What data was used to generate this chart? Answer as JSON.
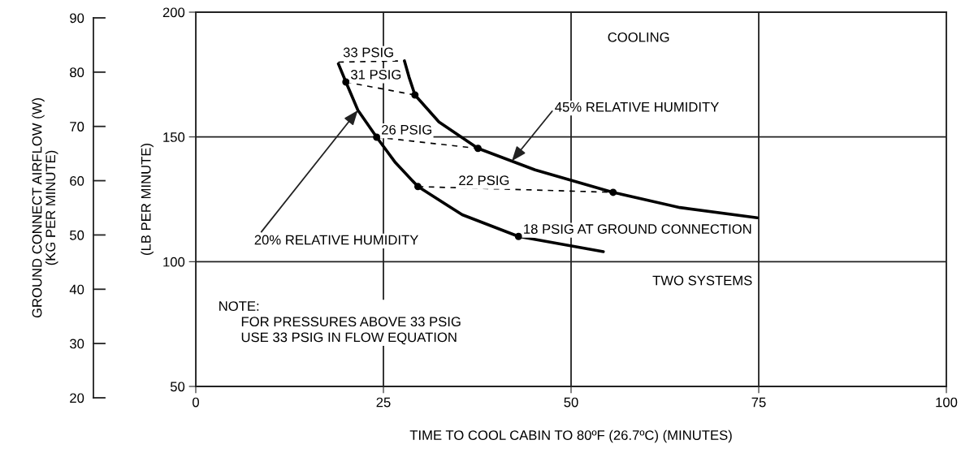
{
  "chart_data": {
    "type": "line",
    "xlabel": "TIME TO COOL CABIN TO 80ºF (26.7ºC) (MINUTES)",
    "ylabel": "(LB PER MINUTE)",
    "y2label": "GROUND CONNECT AIRFLOW (W)\n(KG PER MINUTE)",
    "xlim": [
      0,
      100
    ],
    "xticks": [
      0,
      25,
      50,
      75,
      100
    ],
    "ylim": [
      50,
      200
    ],
    "yticks": [
      50,
      100,
      150,
      200
    ],
    "y2lim": [
      20,
      90
    ],
    "y2ticks": [
      20,
      30,
      40,
      50,
      60,
      70,
      80,
      90
    ],
    "grid": true,
    "line_style": "solid",
    "marker": "none",
    "series": [
      {
        "color": "#000000",
        "x": [
          19.0,
          20.0,
          21.6,
          24.1,
          26.6,
          29.6,
          35.5,
          43.0,
          54.3
        ],
        "values": [
          179.3,
          172.0,
          160.7,
          149.9,
          139.7,
          130.1,
          118.8,
          110.1,
          104.0
        ]
      },
      {
        "color": "#000000",
        "x": [
          27.8,
          28.4,
          29.2,
          32.4,
          37.6,
          45.2,
          55.6,
          64.5,
          74.8
        ],
        "values": [
          180.5,
          174.1,
          166.8,
          156.0,
          145.4,
          136.8,
          127.8,
          121.7,
          117.6
        ]
      },
      {
        "color": "#000000",
        "line_style": "dashed",
        "x": [
          19.0,
          27.8
        ],
        "values": [
          180.0,
          180.5
        ]
      },
      {
        "color": "#000000",
        "line_style": "dashed",
        "x": [
          20.0,
          29.2
        ],
        "values": [
          172.0,
          166.8
        ]
      },
      {
        "color": "#000000",
        "line_style": "dashed",
        "x": [
          24.1,
          37.6
        ],
        "values": [
          149.9,
          145.4
        ]
      },
      {
        "color": "#000000",
        "line_style": "dashed",
        "x": [
          29.6,
          55.6
        ],
        "values": [
          130.1,
          127.8
        ]
      },
      {
        "type": "scatter",
        "color": "#000000",
        "marker": "circle",
        "x": [
          20.0,
          29.2,
          24.1,
          37.6,
          29.6,
          55.6,
          43.0
        ],
        "values": [
          172.0,
          166.8,
          149.9,
          145.4,
          130.1,
          127.8,
          110.1
        ]
      }
    ],
    "annotations": [
      {
        "text": "33 PSIG",
        "x": 19.0,
        "y": 180.0
      },
      {
        "text": "31 PSIG",
        "x": 20.0,
        "y": 172.0
      },
      {
        "text": "26 PSIG",
        "x": 24.1,
        "y": 149.9
      },
      {
        "text": "22 PSIG",
        "x": 35.0,
        "y": 129.6
      },
      {
        "text": "18 PSIG AT GROUND CONNECTION",
        "x": 43.0,
        "y": 110.1
      },
      {
        "text": "45% RELATIVE HUMIDITY",
        "x": 42.1,
        "y": 140.3
      },
      {
        "text": "20% RELATIVE HUMIDITY",
        "x": 21.6,
        "y": 160.7
      },
      "COOLING",
      "TWO SYSTEMS",
      "NOTE:\n      FOR PRESSURES ABOVE 33 PSIG\n      USE 33 PSIG IN FLOW EQUATION"
    ]
  }
}
